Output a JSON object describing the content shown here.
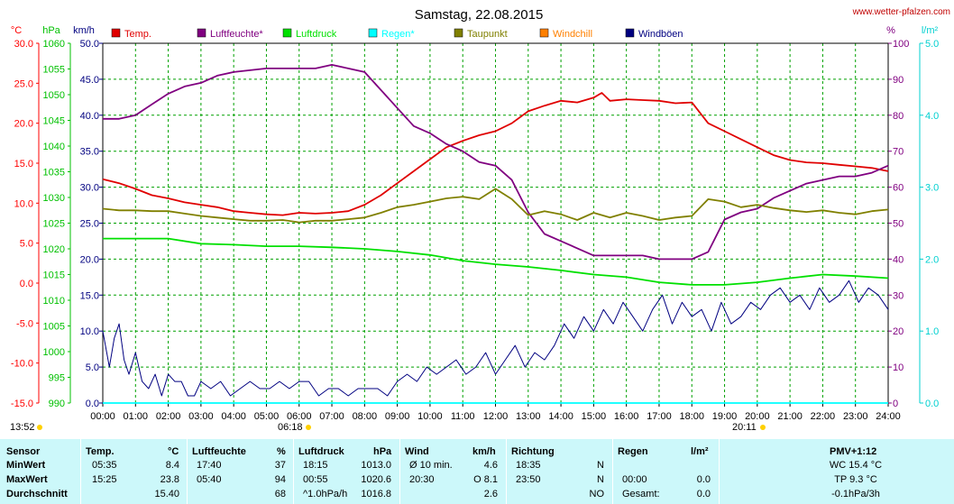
{
  "title": "Samstag, 22.08.2015",
  "site": "www.wetter-pfalzen.com",
  "colors": {
    "temp": "#e00000",
    "humidity": "#800080",
    "pressure": "#00e000",
    "rain": "#00ffff",
    "dewpoint": "#808000",
    "windchill": "#ff8000",
    "gusts": "#000080",
    "temp_axis": "#ff0000",
    "pressure_axis": "#00c000",
    "rain_axis": "#00d0d0",
    "stats_bg": "#ccf8fa"
  },
  "axis_units": {
    "temp": "°C",
    "pressure": "hPa",
    "wind": "km/h",
    "humidity": "%",
    "rain": "l/m²"
  },
  "chart_data": {
    "type": "line",
    "xlabel": "",
    "x_ticks": [
      "00:00",
      "01:00",
      "02:00",
      "03:00",
      "04:00",
      "05:00",
      "06:00",
      "07:00",
      "08:00",
      "09:00",
      "10:00",
      "11:00",
      "12:00",
      "13:00",
      "14:00",
      "15:00",
      "16:00",
      "17:00",
      "18:00",
      "19:00",
      "20:00",
      "21:00",
      "22:00",
      "23:00",
      "24:00"
    ],
    "xlim": [
      0,
      24
    ],
    "axes": {
      "temp": {
        "ticks": [
          "30.0",
          "25.0",
          "20.0",
          "15.0",
          "10.0",
          "5.0",
          "0.0",
          "-5.0",
          "-10.0",
          "-15.0"
        ],
        "ylim": [
          -15,
          30
        ]
      },
      "pressure": {
        "ticks": [
          "1060",
          "1055",
          "1050",
          "1045",
          "1040",
          "1035",
          "1030",
          "1025",
          "1020",
          "1015",
          "1010",
          "1005",
          "1000",
          "995",
          "990"
        ],
        "ylim": [
          990,
          1060
        ]
      },
      "wind": {
        "ticks": [
          "50.0",
          "45.0",
          "40.0",
          "35.0",
          "30.0",
          "25.0",
          "20.0",
          "15.0",
          "10.0",
          "5.0",
          "0.0"
        ],
        "ylim": [
          0,
          50
        ]
      },
      "humidity": {
        "ticks": [
          "100",
          "90",
          "80",
          "70",
          "60",
          "50",
          "40",
          "30",
          "20",
          "10",
          "0"
        ],
        "ylim": [
          0,
          100
        ]
      },
      "rain": {
        "ticks": [
          "5.0",
          "4.0",
          "3.0",
          "2.0",
          "1.0",
          "0.0"
        ],
        "ylim": [
          0,
          5
        ]
      }
    },
    "grid": true,
    "legend_position": "top",
    "series": [
      {
        "name": "Temp.",
        "color_key": "temp",
        "axis": "temp",
        "x": [
          0,
          0.5,
          1,
          1.5,
          2,
          2.5,
          3,
          3.5,
          4,
          4.5,
          5,
          5.5,
          6,
          6.5,
          7,
          7.5,
          8,
          8.5,
          9,
          9.5,
          10,
          10.5,
          11,
          11.5,
          12,
          12.5,
          13,
          13.5,
          14,
          14.5,
          15,
          15.25,
          15.5,
          16,
          16.5,
          17,
          17.5,
          18,
          18.5,
          19,
          19.5,
          20,
          20.5,
          21,
          21.5,
          22,
          22.5,
          23,
          23.5,
          24
        ],
        "y": [
          13.0,
          12.5,
          11.8,
          11.0,
          10.6,
          10.1,
          9.8,
          9.5,
          9.0,
          8.8,
          8.6,
          8.5,
          8.8,
          8.7,
          8.8,
          9.0,
          9.8,
          11.0,
          12.5,
          14.0,
          15.5,
          17.0,
          17.8,
          18.5,
          19.0,
          20.0,
          21.5,
          22.2,
          22.8,
          22.6,
          23.2,
          23.8,
          22.8,
          23.0,
          22.9,
          22.8,
          22.5,
          22.6,
          20.0,
          19.0,
          18.0,
          17.0,
          16.0,
          15.4,
          15.1,
          15.0,
          14.8,
          14.6,
          14.4,
          14.0
        ]
      },
      {
        "name": "Luftfeuchte*",
        "color_key": "humidity",
        "axis": "humidity",
        "x": [
          0,
          0.5,
          1,
          1.5,
          2,
          2.5,
          3,
          3.5,
          4,
          4.5,
          5,
          5.5,
          6,
          6.5,
          7,
          7.5,
          8,
          8.5,
          9,
          9.5,
          10,
          10.5,
          11,
          11.5,
          12,
          12.5,
          13,
          13.5,
          14,
          14.5,
          15,
          15.5,
          16,
          16.5,
          17,
          17.5,
          18,
          18.5,
          19,
          19.5,
          20,
          20.5,
          21,
          21.5,
          22,
          22.5,
          23,
          23.5,
          24
        ],
        "y": [
          79,
          79,
          80,
          83,
          86,
          88,
          89,
          91,
          92,
          92.5,
          93,
          93,
          93,
          93,
          94,
          93,
          92,
          87,
          82,
          77,
          75,
          72,
          70,
          67,
          66,
          62,
          53,
          47,
          45,
          43,
          41,
          41,
          41,
          41,
          40,
          40,
          40,
          42,
          51,
          53,
          54,
          57,
          59,
          61,
          62,
          63,
          63,
          64,
          66
        ]
      },
      {
        "name": "Luftdruck",
        "color_key": "pressure",
        "axis": "pressure",
        "x": [
          0,
          1,
          2,
          3,
          4,
          5,
          6,
          7,
          8,
          9,
          10,
          11,
          12,
          13,
          14,
          15,
          16,
          17,
          18,
          19,
          20,
          21,
          22,
          23,
          24
        ],
        "y": [
          1022,
          1022,
          1022,
          1021,
          1020.8,
          1020.5,
          1020.5,
          1020.3,
          1020,
          1019.5,
          1018.8,
          1017.7,
          1017,
          1016.5,
          1015.8,
          1015,
          1014.5,
          1013.5,
          1013,
          1013,
          1013.5,
          1014.3,
          1015,
          1014.7,
          1014.3
        ]
      },
      {
        "name": "Regen*",
        "color_key": "rain",
        "axis": "rain",
        "x": [
          0,
          24
        ],
        "y": [
          0,
          0
        ]
      },
      {
        "name": "Taupunkt",
        "color_key": "dewpoint",
        "axis": "temp",
        "x": [
          0,
          0.5,
          1,
          1.5,
          2,
          2.5,
          3,
          3.5,
          4,
          4.5,
          5,
          5.5,
          6,
          6.5,
          7,
          7.5,
          8,
          8.5,
          9,
          9.5,
          10,
          10.5,
          11,
          11.5,
          12,
          12.5,
          13,
          13.5,
          14,
          14.5,
          15,
          15.5,
          16,
          16.5,
          17,
          17.5,
          18,
          18.5,
          19,
          19.5,
          20,
          20.5,
          21,
          21.5,
          22,
          22.5,
          23,
          23.5,
          24
        ],
        "y": [
          9.3,
          9.1,
          9.1,
          9.0,
          9.0,
          8.7,
          8.4,
          8.2,
          8.0,
          7.8,
          7.8,
          7.9,
          7.6,
          7.8,
          7.8,
          8.0,
          8.2,
          8.8,
          9.5,
          9.8,
          10.2,
          10.6,
          10.8,
          10.5,
          11.8,
          10.5,
          8.5,
          9.0,
          8.6,
          7.9,
          8.8,
          8.2,
          8.8,
          8.4,
          7.9,
          8.2,
          8.4,
          10.5,
          10.2,
          9.5,
          9.8,
          9.4,
          9.1,
          8.9,
          9.1,
          8.8,
          8.6,
          9.0,
          9.2
        ]
      },
      {
        "name": "Windchill",
        "color_key": "windchill",
        "axis": "temp",
        "x": [],
        "y": []
      },
      {
        "name": "Windböen",
        "color_key": "gusts",
        "axis": "wind",
        "x": [
          0,
          0.2,
          0.35,
          0.5,
          0.65,
          0.8,
          1.0,
          1.2,
          1.4,
          1.6,
          1.8,
          2.0,
          2.2,
          2.4,
          2.6,
          2.8,
          3.0,
          3.3,
          3.6,
          3.9,
          4.2,
          4.5,
          4.8,
          5.1,
          5.4,
          5.7,
          6.0,
          6.3,
          6.6,
          6.9,
          7.2,
          7.5,
          7.8,
          8.1,
          8.4,
          8.7,
          9.0,
          9.3,
          9.6,
          9.9,
          10.2,
          10.5,
          10.8,
          11.1,
          11.4,
          11.7,
          12.0,
          12.3,
          12.6,
          12.9,
          13.2,
          13.5,
          13.8,
          14.1,
          14.4,
          14.7,
          15.0,
          15.3,
          15.6,
          15.9,
          16.2,
          16.5,
          16.8,
          17.1,
          17.4,
          17.7,
          18.0,
          18.3,
          18.6,
          18.9,
          19.2,
          19.5,
          19.8,
          20.1,
          20.4,
          20.7,
          21.0,
          21.3,
          21.6,
          21.9,
          22.2,
          22.5,
          22.8,
          23.1,
          23.4,
          23.7,
          24.0
        ],
        "y": [
          10,
          5,
          9,
          11,
          6,
          4,
          7,
          3,
          2,
          4,
          1,
          4,
          3,
          3,
          1,
          1,
          3,
          2,
          3,
          1,
          2,
          3,
          2,
          2,
          3,
          2,
          3,
          3,
          1,
          2,
          2,
          1,
          2,
          2,
          2,
          1,
          3,
          4,
          3,
          5,
          4,
          5,
          6,
          4,
          5,
          7,
          4,
          6,
          8,
          5,
          7,
          6,
          8,
          11,
          9,
          12,
          10,
          13,
          11,
          14,
          12,
          10,
          13,
          15,
          11,
          14,
          12,
          13,
          10,
          14,
          11,
          12,
          14,
          13,
          15,
          16,
          14,
          15,
          13,
          16,
          14,
          15,
          17,
          14,
          16,
          15,
          13
        ]
      }
    ]
  },
  "legend": [
    "Temp.",
    "Luftfeuchte*",
    "Luftdruck",
    "Regen*",
    "Taupunkt",
    "Windchill",
    "Windböen"
  ],
  "time_markers": {
    "start": "13:52",
    "sunrise": "06:18",
    "sunset": "20:11"
  },
  "stats": {
    "headers": {
      "sensor": "Sensor",
      "temp": "Temp.",
      "temp_unit": "°C",
      "hum": "Luftfeuchte",
      "hum_unit": "%",
      "press": "Luftdruck",
      "press_unit": "hPa",
      "wind": "Wind",
      "wind_unit": "km/h",
      "dir": "Richtung",
      "rain": "Regen",
      "rain_unit": "l/m²",
      "pmv": "PMV+1:12"
    },
    "rows": [
      {
        "label": "MinWert",
        "temp_time": "05:35",
        "temp_val": "8.4",
        "hum_time": "17:40",
        "hum_val": "37",
        "press_time": "18:15",
        "press_val": "1013.0",
        "wind_time": "Ø 10 min.",
        "wind_val": "4.6",
        "dir_time": "18:35",
        "dir_val": "N",
        "rain_time": "",
        "rain_val": "",
        "pmv": "WC 15.4 °C"
      },
      {
        "label": "MaxWert",
        "temp_time": "15:25",
        "temp_val": "23.8",
        "hum_time": "05:40",
        "hum_val": "94",
        "press_time": "00:55",
        "press_val": "1020.6",
        "wind_time": "20:30",
        "wind_val": "O 8.1",
        "dir_time": "23:50",
        "dir_val": "N",
        "rain_time": "00:00",
        "rain_val": "0.0",
        "pmv": "TP 9.3 °C"
      },
      {
        "label": "Durchschnitt",
        "temp_time": "",
        "temp_val": "15.40",
        "hum_time": "",
        "hum_val": "68",
        "press_time": "^1.0hPa/h",
        "press_val": "1016.8",
        "wind_time": "",
        "wind_val": "2.6",
        "dir_time": "",
        "dir_val": "NO",
        "rain_time": "Gesamt:",
        "rain_val": "0.0",
        "pmv": "-0.1hPa/3h"
      }
    ]
  }
}
